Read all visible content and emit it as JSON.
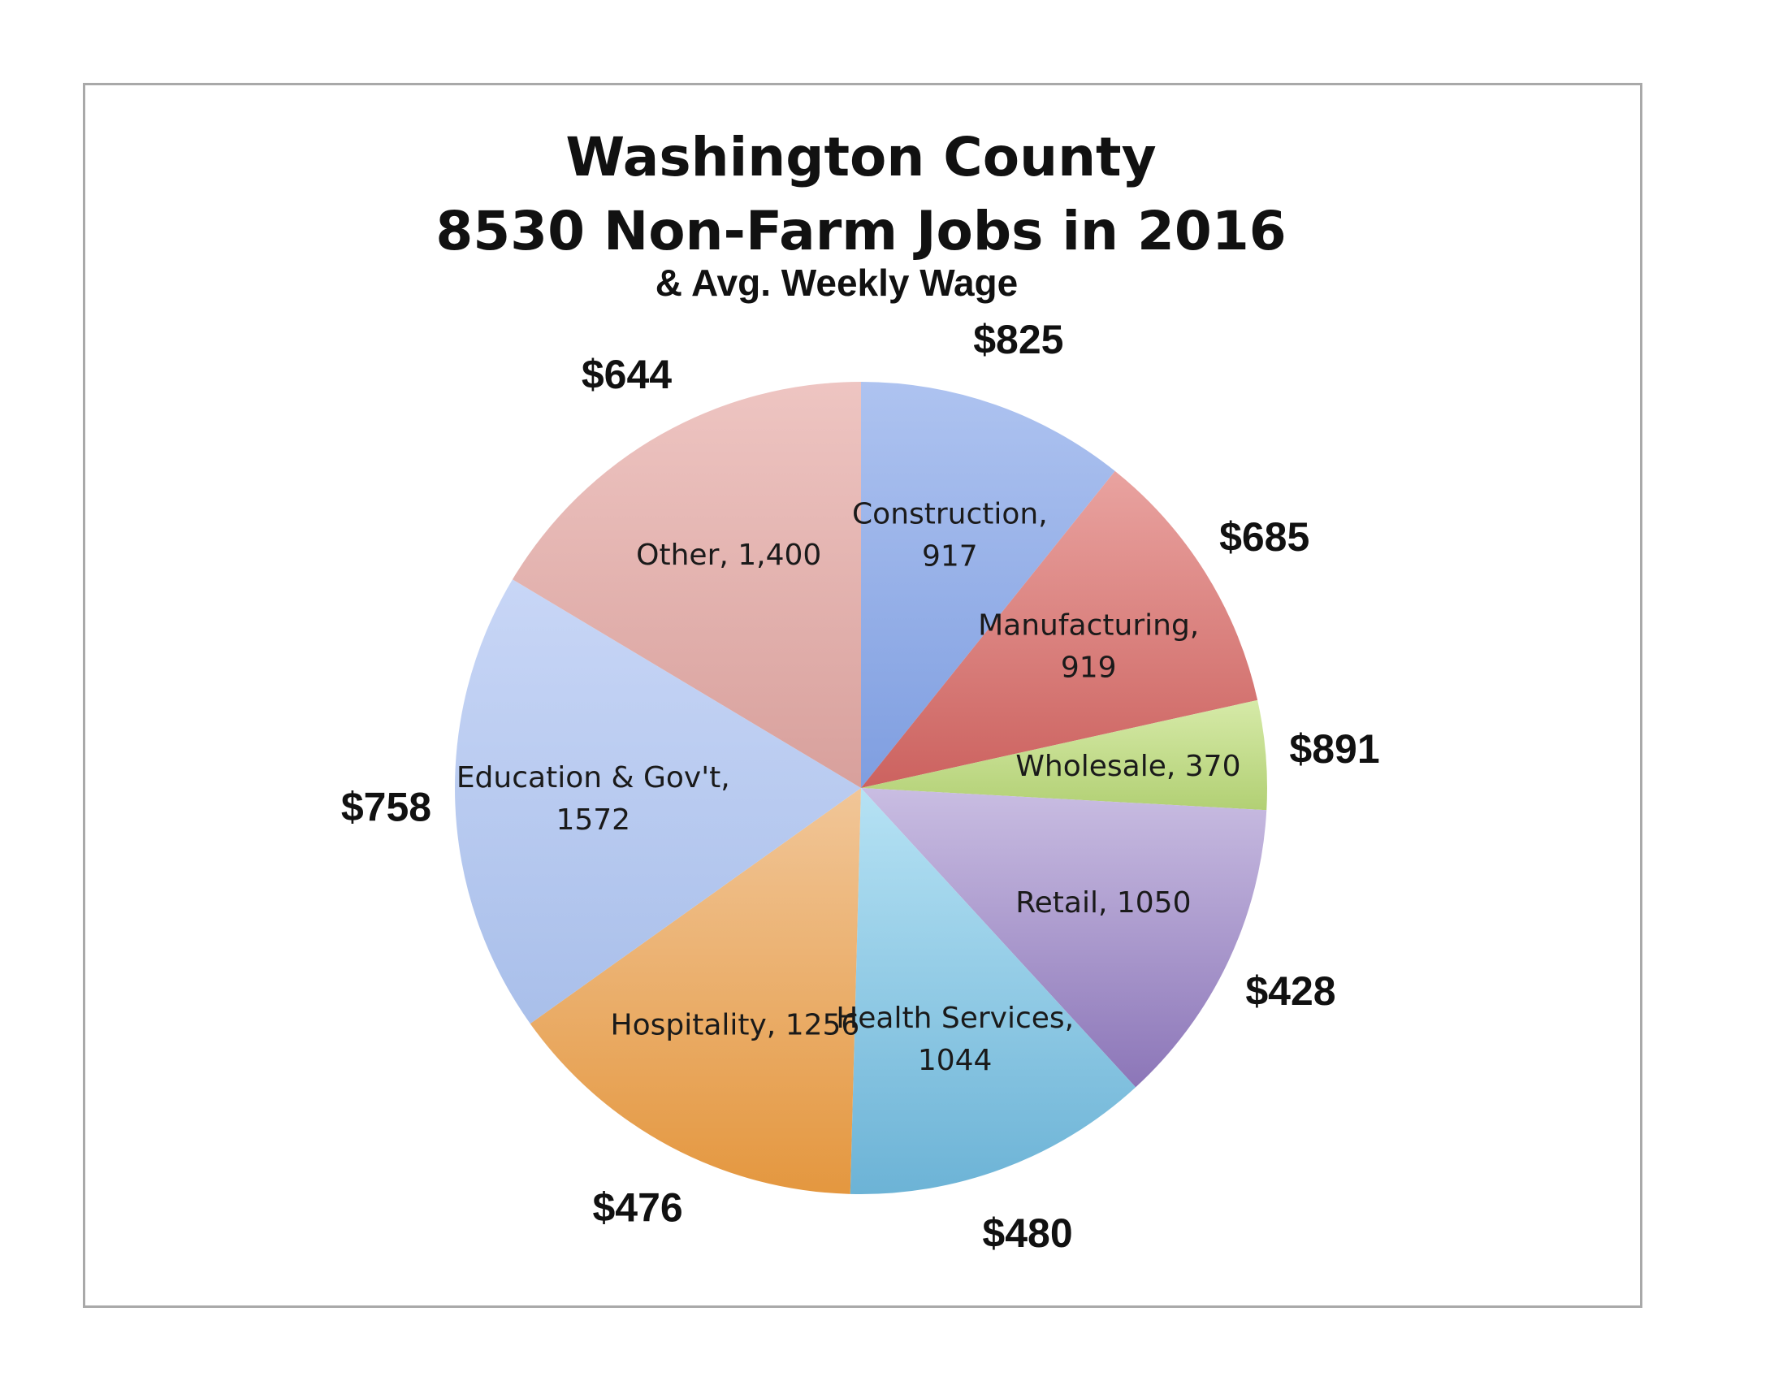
{
  "chart_data": {
    "type": "pie",
    "title": "Washington County",
    "title_line2": "8530 Non-Farm Jobs in 2016",
    "subtitle": "& Avg. Weekly Wage",
    "total": 8530,
    "start_angle_deg": 0,
    "direction": "clockwise",
    "slices": [
      {
        "category": "Construction",
        "value": 917,
        "label_lines": [
          "Construction,",
          "917"
        ],
        "wage": "$825",
        "color": "#7f9ee0",
        "color_light": "#aec3f0"
      },
      {
        "category": "Manufacturing",
        "value": 919,
        "label_lines": [
          "Manufacturing,",
          "919"
        ],
        "wage": "$685",
        "color": "#cc625f",
        "color_light": "#e9a3a0"
      },
      {
        "category": "Wholesale",
        "value": 370,
        "label_lines": [
          "Wholesale, 370"
        ],
        "wage": "$891",
        "color": "#b2d074",
        "color_light": "#d6eaa8"
      },
      {
        "category": "Retail",
        "value": 1050,
        "label_lines": [
          "Retail, 1050"
        ],
        "wage": "$428",
        "color": "#8c76b8",
        "color_light": "#c9bde2"
      },
      {
        "category": "Health Services",
        "value": 1044,
        "label_lines": [
          "Health Services,",
          "1044"
        ],
        "wage": "$480",
        "color": "#6cb3d6",
        "color_light": "#b6e2f4"
      },
      {
        "category": "Hospitality",
        "value": 1256,
        "label_lines": [
          "Hospitality, 1256"
        ],
        "wage": "$476",
        "color": "#e4973f",
        "color_light": "#f1c698"
      },
      {
        "category": "Education & Gov't",
        "value": 1572,
        "label_lines": [
          "Education & Gov't,",
          "1572"
        ],
        "wage": "$758",
        "color": "#a9bfea",
        "color_light": "#c8d6f6"
      },
      {
        "category": "Other",
        "value": 1400,
        "label_lines": [
          "Other, 1,400"
        ],
        "wage": "$644",
        "color": "#d8a09c",
        "color_light": "#eec5c2"
      }
    ]
  }
}
